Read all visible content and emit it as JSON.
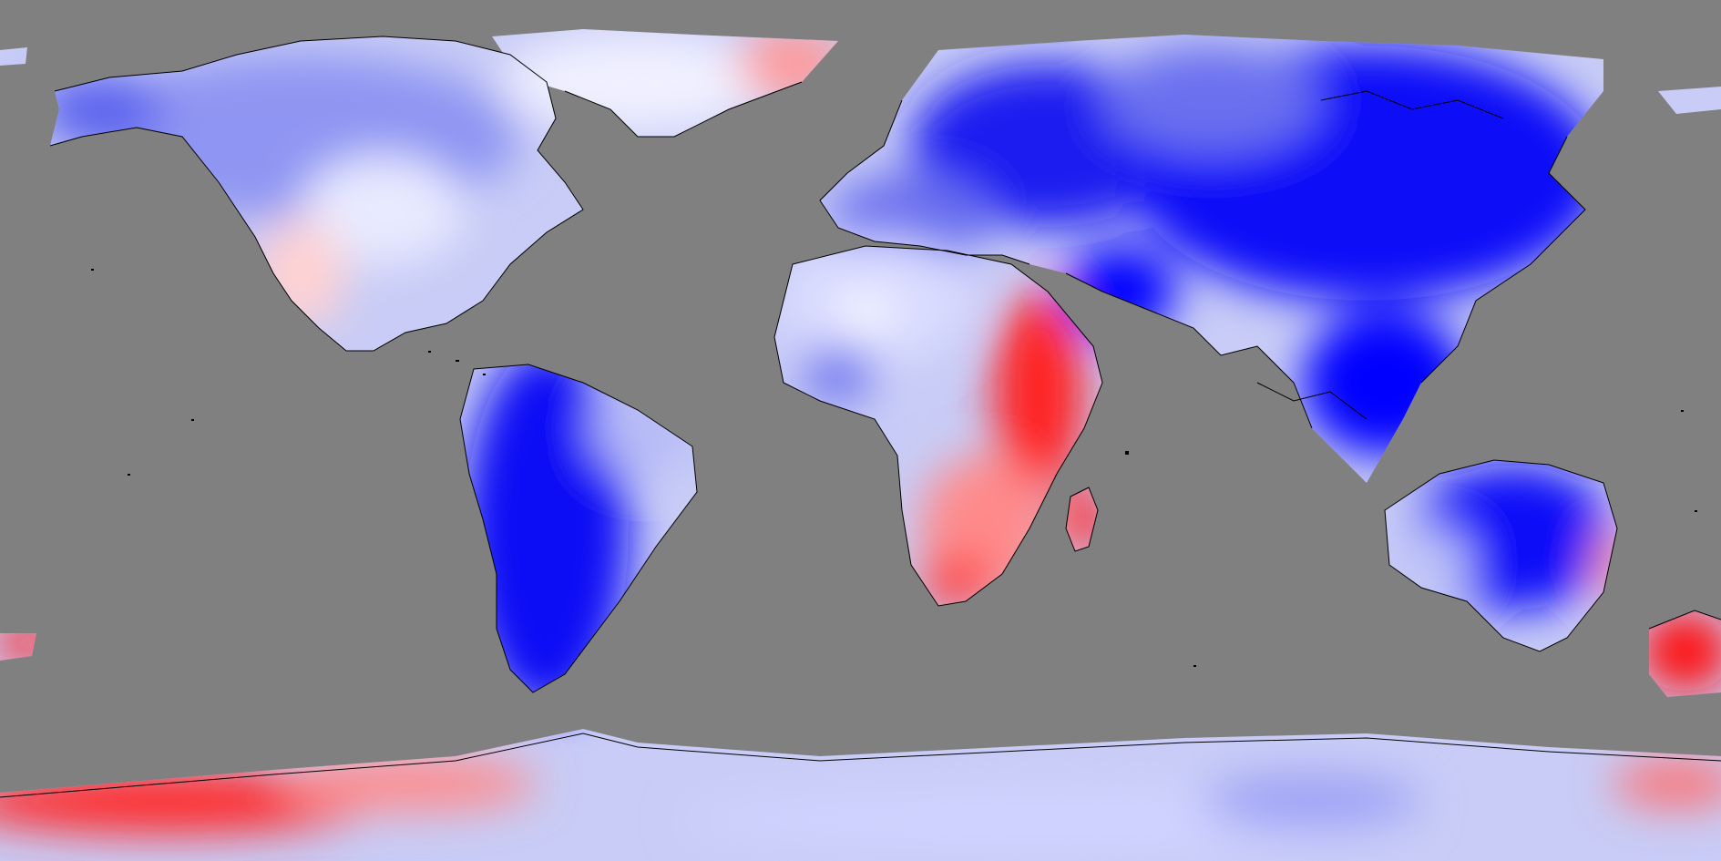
{
  "map": {
    "projection": "equirectangular",
    "ocean_mask_color": "#808080",
    "coastline_color": "#000000",
    "color_scale": {
      "negative": "#0000ff",
      "neutral": "#ffffff",
      "positive": "#ff0000"
    },
    "legend": "none",
    "labels": "none"
  }
}
